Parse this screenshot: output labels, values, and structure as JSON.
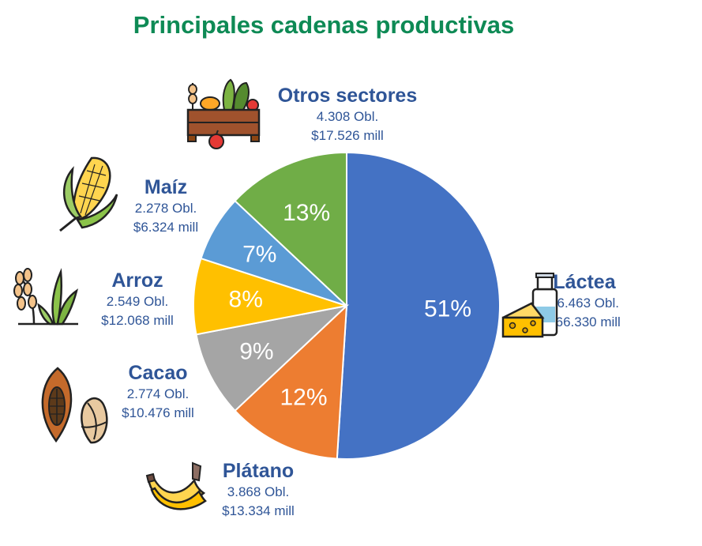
{
  "title": "Principales cadenas productivas",
  "chart_data": {
    "type": "pie",
    "title": "Principales cadenas productivas",
    "slices": [
      {
        "name": "Láctea",
        "percent": 51,
        "label": "51%",
        "obligations": "16.463 Obl.",
        "amount": "$66.330 mill",
        "color": "#4472c4"
      },
      {
        "name": "Plátano",
        "percent": 12,
        "label": "12%",
        "obligations": "3.868 Obl.",
        "amount": "$13.334 mill",
        "color": "#ed7d31"
      },
      {
        "name": "Cacao",
        "percent": 9,
        "label": "9%",
        "obligations": "2.774 Obl.",
        "amount": "$10.476 mill",
        "color": "#a5a5a5"
      },
      {
        "name": "Arroz",
        "percent": 8,
        "label": "8%",
        "obligations": "2.549 Obl.",
        "amount": "$12.068 mill",
        "color": "#ffc000"
      },
      {
        "name": "Maíz",
        "percent": 7,
        "label": "7%",
        "obligations": "2.278 Obl.",
        "amount": "$6.324 mill",
        "color": "#5b9bd5"
      },
      {
        "name": "Otros sectores",
        "percent": 13,
        "label": "13%",
        "obligations": "4.308 Obl.",
        "amount": "$17.526 mill",
        "color": "#70ad47"
      }
    ]
  },
  "icons": [
    "milk-cheese-icon",
    "banana-icon",
    "cacao-icon",
    "rice-icon",
    "corn-icon",
    "vegetable-crate-icon"
  ]
}
